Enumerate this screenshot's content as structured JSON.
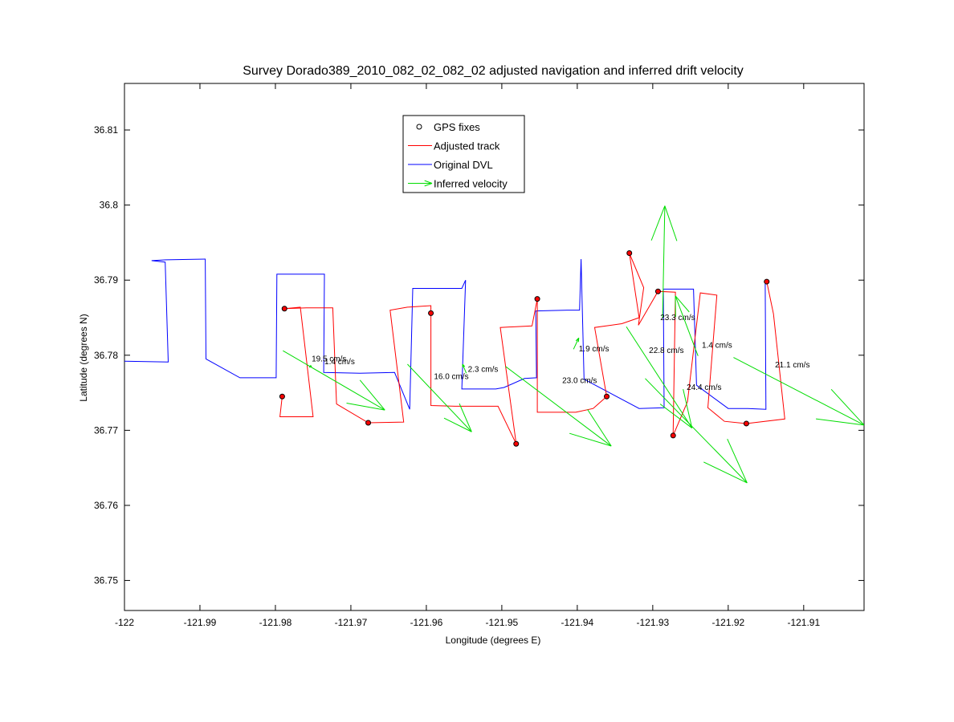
{
  "chart_data": {
    "type": "line",
    "title": "Survey Dorado389_2010_082_02_082_02 adjusted navigation and inferred drift velocity",
    "xlabel": "Longitude (degrees E)",
    "ylabel": "Latitude (degrees N)",
    "xlim": [
      -122.0,
      -121.902
    ],
    "ylim": [
      36.746,
      36.8162
    ],
    "xticks": [
      -122,
      -121.99,
      -121.98,
      -121.97,
      -121.96,
      -121.95,
      -121.94,
      -121.93,
      -121.92,
      -121.91
    ],
    "xtick_labels": [
      "-122",
      "-121.99",
      "-121.98",
      "-121.97",
      "-121.96",
      "-121.95",
      "-121.94",
      "-121.93",
      "-121.92",
      "-121.91"
    ],
    "yticks": [
      36.75,
      36.76,
      36.77,
      36.78,
      36.79,
      36.8,
      36.81
    ],
    "ytick_labels": [
      "36.75",
      "36.76",
      "36.77",
      "36.78",
      "36.79",
      "36.8",
      "36.81"
    ],
    "grid": false,
    "legend_position": "top-center",
    "colors": {
      "gps": "#000000",
      "adjusted": "#ff0000",
      "original": "#0000ff",
      "velocity": "#00dd00"
    },
    "legend": [
      {
        "label": "GPS fixes",
        "key": "gps"
      },
      {
        "label": "Adjusted track",
        "key": "adjusted"
      },
      {
        "label": "Original DVL",
        "key": "original"
      },
      {
        "label": "Inferred velocity",
        "key": "velocity"
      }
    ],
    "gps_fixes": [
      [
        -121.9791,
        36.7745
      ],
      [
        -121.9788,
        36.7862
      ],
      [
        -121.9677,
        36.771
      ],
      [
        -121.9594,
        36.7856
      ],
      [
        -121.9481,
        36.7682
      ],
      [
        -121.9453,
        36.7875
      ],
      [
        -121.9361,
        36.7745
      ],
      [
        -121.9331,
        36.7936
      ],
      [
        -121.9293,
        36.7885
      ],
      [
        -121.9273,
        36.7693
      ],
      [
        -121.9176,
        36.7709
      ],
      [
        -121.9149,
        36.7898
      ]
    ],
    "original_dvl": [
      [
        -122.0,
        36.7792
      ],
      [
        -121.9942,
        36.7791
      ],
      [
        -121.9946,
        36.7924
      ],
      [
        -121.9964,
        36.7926
      ],
      [
        -121.9945,
        36.7927
      ],
      [
        -121.9893,
        36.7928
      ],
      [
        -121.9892,
        36.7795
      ],
      [
        -121.9847,
        36.777
      ],
      [
        -121.9799,
        36.777
      ],
      [
        -121.9798,
        36.7908
      ],
      [
        -121.9735,
        36.7908
      ],
      [
        -121.9736,
        36.7777
      ],
      [
        -121.9688,
        36.7776
      ],
      [
        -121.9642,
        36.7777
      ],
      [
        -121.9622,
        36.7728
      ],
      [
        -121.9618,
        36.7889
      ],
      [
        -121.9553,
        36.7889
      ],
      [
        -121.9548,
        36.79
      ],
      [
        -121.9553,
        36.7755
      ],
      [
        -121.9508,
        36.7755
      ],
      [
        -121.9497,
        36.7757
      ],
      [
        -121.947,
        36.7769
      ],
      [
        -121.9454,
        36.777
      ],
      [
        -121.9455,
        36.7859
      ],
      [
        -121.9413,
        36.786
      ],
      [
        -121.9397,
        36.786
      ],
      [
        -121.9395,
        36.7928
      ],
      [
        -121.9391,
        36.7768
      ],
      [
        -121.9318,
        36.7729
      ],
      [
        -121.9285,
        36.773
      ],
      [
        -121.9286,
        36.7888
      ],
      [
        -121.9246,
        36.7888
      ],
      [
        -121.9242,
        36.776
      ],
      [
        -121.92,
        36.7729
      ],
      [
        -121.9174,
        36.7729
      ],
      [
        -121.915,
        36.7728
      ],
      [
        -121.9151,
        36.7895
      ]
    ],
    "adjusted_track": [
      [
        -121.9791,
        36.7745
      ],
      [
        -121.9794,
        36.7718
      ],
      [
        -121.9766,
        36.7718
      ],
      [
        -121.975,
        36.7718
      ],
      [
        -121.9767,
        36.7864
      ],
      [
        -121.9788,
        36.7862
      ],
      [
        -121.9759,
        36.7863
      ],
      [
        -121.9724,
        36.7863
      ],
      [
        -121.9719,
        36.7735
      ],
      [
        -121.9677,
        36.771
      ],
      [
        -121.963,
        36.7711
      ],
      [
        -121.9648,
        36.786
      ],
      [
        -121.9625,
        36.7864
      ],
      [
        -121.9594,
        36.7866
      ],
      [
        -121.9594,
        36.7856
      ],
      [
        -121.9594,
        36.7733
      ],
      [
        -121.9562,
        36.7732
      ],
      [
        -121.9505,
        36.7732
      ],
      [
        -121.9481,
        36.7682
      ],
      [
        -121.9502,
        36.7837
      ],
      [
        -121.9481,
        36.7838
      ],
      [
        -121.946,
        36.7839
      ],
      [
        -121.9453,
        36.7875
      ],
      [
        -121.9453,
        36.7724
      ],
      [
        -121.9402,
        36.7724
      ],
      [
        -121.9379,
        36.7729
      ],
      [
        -121.9361,
        36.7745
      ],
      [
        -121.9377,
        36.7837
      ],
      [
        -121.9341,
        36.7842
      ],
      [
        -121.9318,
        36.785
      ],
      [
        -121.9331,
        36.7936
      ],
      [
        -121.9312,
        36.789
      ],
      [
        -121.9319,
        36.784
      ],
      [
        -121.9293,
        36.7885
      ],
      [
        -121.927,
        36.7884
      ],
      [
        -121.9273,
        36.7693
      ],
      [
        -121.9254,
        36.7738
      ],
      [
        -121.9237,
        36.7883
      ],
      [
        -121.9215,
        36.788
      ],
      [
        -121.9227,
        36.773
      ],
      [
        -121.9205,
        36.7712
      ],
      [
        -121.9176,
        36.7709
      ],
      [
        -121.9125,
        36.7715
      ],
      [
        -121.914,
        36.7855
      ],
      [
        -121.9149,
        36.7898
      ]
    ],
    "velocity_arrows": [
      {
        "label": "19.5 cm/s",
        "x0": -121.979,
        "y0": 36.7806,
        "x1": -121.9655,
        "y1": 36.7727,
        "lx": -121.9752,
        "ly": 36.7792
      },
      {
        "label": "1.4 cm/s",
        "x0": -121.9752,
        "y0": 36.7786,
        "x1": -121.9755,
        "y1": 36.7784,
        "lx": -121.9735,
        "ly": 36.7788
      },
      {
        "label": "16.0 cm/s",
        "x0": -121.9625,
        "y0": 36.7788,
        "x1": -121.954,
        "y1": 36.7698,
        "lx": -121.959,
        "ly": 36.7768
      },
      {
        "label": "2.3 cm/s",
        "x0": -121.9547,
        "y0": 36.7776,
        "x1": -121.9552,
        "y1": 36.7788,
        "lx": -121.9545,
        "ly": 36.7778
      },
      {
        "label": "23.0 cm/s",
        "x0": -121.9495,
        "y0": 36.7785,
        "x1": -121.9355,
        "y1": 36.7679,
        "lx": -121.942,
        "ly": 36.7763
      },
      {
        "label": "1.9 cm/s",
        "x0": -121.9405,
        "y0": 36.7808,
        "x1": -121.9398,
        "y1": 36.7823,
        "lx": -121.9398,
        "ly": 36.7805
      },
      {
        "label": "23.3 cm/s",
        "x0": -121.9287,
        "y0": 36.7849,
        "x1": -121.9284,
        "y1": 36.7999,
        "lx": -121.929,
        "ly": 36.7847
      },
      {
        "label": "22.8 cm/s",
        "x0": -121.9335,
        "y0": 36.7838,
        "x1": -121.9248,
        "y1": 36.7703,
        "lx": -121.9305,
        "ly": 36.7803
      },
      {
        "label": "1.4 cm/s",
        "x0": -121.924,
        "y0": 36.7799,
        "x1": -121.927,
        "y1": 36.7879,
        "lx": -121.9235,
        "ly": 36.781
      },
      {
        "label": "24.4 cm/s",
        "x0": -121.931,
        "y0": 36.7769,
        "x1": -121.9175,
        "y1": 36.763,
        "lx": -121.9255,
        "ly": 36.7754
      },
      {
        "label": "21.1 cm/s",
        "x0": -121.9193,
        "y0": 36.7797,
        "x1": -121.902,
        "y1": 36.7707,
        "lx": -121.9138,
        "ly": 36.7784
      }
    ]
  }
}
